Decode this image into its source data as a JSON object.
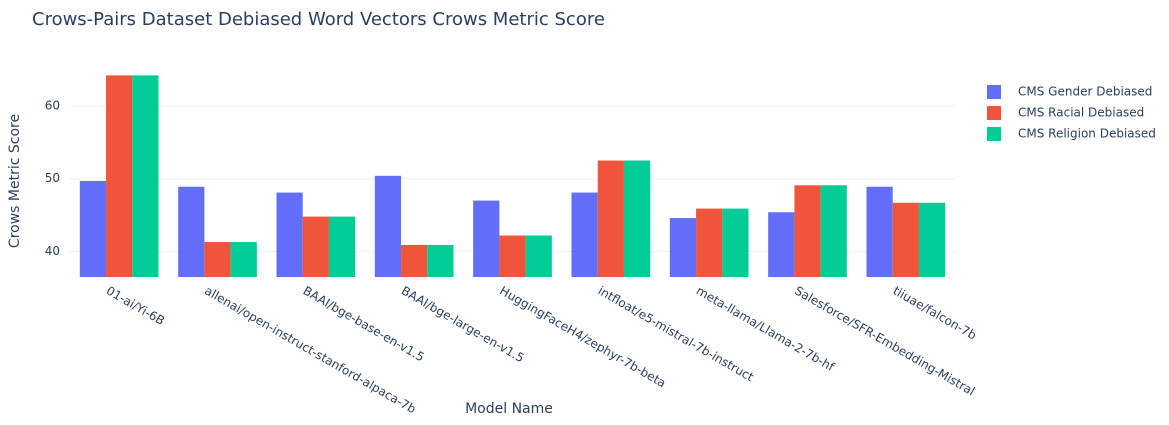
{
  "chart_data": {
    "type": "bar",
    "title": "Crows-Pairs Dataset Debiased Word Vectors Crows Metric Score",
    "x_label": "Model Name",
    "y_label": "Crows Metric Score",
    "categories": [
      "01-ai/Yi-6B",
      "allenai/open-instruct-stanford-alpaca-7b",
      "BAAI/bge-base-en-v1.5",
      "BAAI/bge-large-en-v1.5",
      "HuggingFaceH4/zephyr-7b-beta",
      "intfloat/e5-mistral-7b-instruct",
      "meta-llama/Llama-2-7b-hf",
      "Salesforce/SFR-Embedding-Mistral",
      "tiiuae/falcon-7b"
    ],
    "series": [
      {
        "name": "CMS Gender Debiased",
        "color": "#636efa",
        "values": [
          49.7,
          48.9,
          48.1,
          50.4,
          47.0,
          48.1,
          44.6,
          45.4,
          48.9
        ]
      },
      {
        "name": "CMS Racial Debiased",
        "color": "#ef553b",
        "values": [
          64.2,
          41.3,
          44.8,
          40.9,
          42.2,
          52.5,
          45.9,
          49.1,
          46.7
        ]
      },
      {
        "name": "CMS Religion Debiased",
        "color": "#00cc96",
        "values": [
          64.2,
          41.3,
          44.8,
          40.9,
          42.2,
          52.5,
          45.9,
          49.1,
          46.7
        ]
      }
    ],
    "ylim": [
      36.5,
      67
    ],
    "yticks": [
      40,
      50,
      60
    ],
    "grid": true,
    "legend": "right"
  }
}
